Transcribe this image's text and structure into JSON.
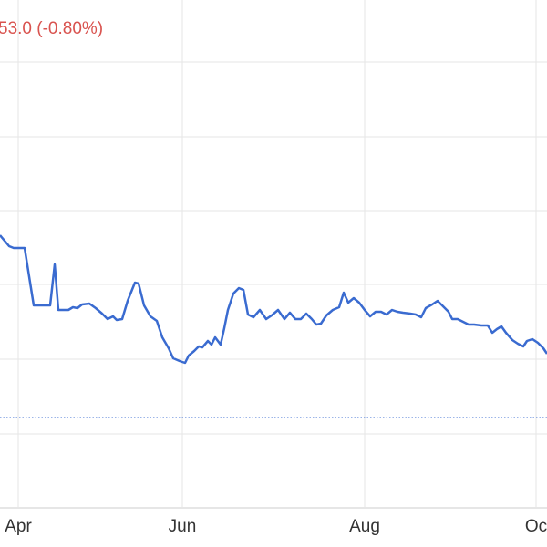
{
  "chart_data": {
    "type": "line",
    "subtitle": "53.0 (-0.80%)",
    "subtitle_color": "#d9534f",
    "xlim": [
      0,
      600
    ],
    "xticks": [
      {
        "value": 20,
        "label": "Apr"
      },
      {
        "value": 200,
        "label": "Jun"
      },
      {
        "value": 400,
        "label": "Aug"
      },
      {
        "value": 588,
        "label": "Oc"
      }
    ],
    "ylim": [
      0,
      600
    ],
    "yticks": [
      43,
      124,
      206,
      288,
      369,
      450,
      532
    ],
    "reference_line": 142,
    "grid": true,
    "series": [
      {
        "color": "#3a6bd0",
        "x": [
          0,
          10,
          15,
          27,
          37,
          55,
          60,
          64,
          75,
          80,
          85,
          90,
          98,
          105,
          112,
          118,
          124,
          128,
          134,
          140,
          148,
          152,
          158,
          165,
          172,
          178,
          185,
          190,
          197,
          203,
          207,
          213,
          218,
          222,
          228,
          232,
          236,
          242,
          246,
          250,
          256,
          262,
          267,
          272,
          278,
          285,
          292,
          298,
          305,
          312,
          318,
          324,
          330,
          336,
          342,
          347,
          352,
          358,
          365,
          372,
          377,
          382,
          388,
          394,
          400,
          406,
          412,
          418,
          424,
          430,
          436,
          442,
          450,
          456,
          462,
          467,
          474,
          480,
          486,
          492,
          496,
          502,
          508,
          514,
          520,
          528,
          535,
          540,
          545,
          550,
          555,
          562,
          568,
          574,
          578,
          584,
          590,
          596,
          600
        ],
        "values": [
          342,
          330,
          328,
          328,
          265,
          265,
          310,
          260,
          260,
          263,
          262,
          266,
          267,
          262,
          256,
          250,
          253,
          249,
          250,
          270,
          290,
          289,
          265,
          253,
          248,
          230,
          218,
          207,
          204,
          202,
          210,
          215,
          220,
          219,
          226,
          222,
          230,
          222,
          240,
          260,
          278,
          284,
          282,
          255,
          252,
          260,
          250,
          254,
          260,
          250,
          257,
          250,
          250,
          256,
          250,
          244,
          245,
          254,
          260,
          263,
          279,
          268,
          273,
          268,
          260,
          253,
          258,
          258,
          255,
          260,
          258,
          257,
          256,
          255,
          252,
          262,
          266,
          270,
          264,
          258,
          250,
          250,
          247,
          244,
          244,
          243,
          243,
          235,
          239,
          242,
          235,
          227,
          223,
          220,
          226,
          228,
          224,
          218,
          212
        ]
      }
    ]
  }
}
